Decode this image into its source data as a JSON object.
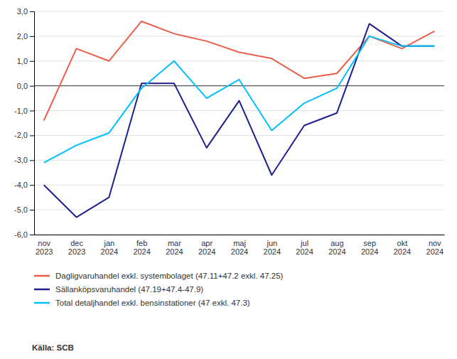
{
  "chart_data": {
    "type": "line",
    "categories": [
      "nov\n2023",
      "dec\n2023",
      "jan\n2024",
      "feb\n2024",
      "mar\n2024",
      "apr\n2024",
      "maj\n2024",
      "jun\n2024",
      "jul\n2024",
      "aug\n2024",
      "sep\n2024",
      "okt\n2024",
      "nov\n2024"
    ],
    "series": [
      {
        "name": "Dagligvaruhandel exkl. systembolaget (47.11+47.2 exkl. 47.25)",
        "color": "#E8604C",
        "values": [
          -1.4,
          1.5,
          1.0,
          2.6,
          2.1,
          1.8,
          1.35,
          1.1,
          0.3,
          0.5,
          2.0,
          1.5,
          2.2
        ]
      },
      {
        "name": "Sällanköpsvaruhandel (47.19+47.4-47.9)",
        "color": "#1F1F8F",
        "values": [
          -4.0,
          -5.3,
          -4.5,
          0.1,
          0.1,
          -2.5,
          -0.6,
          -3.6,
          -1.6,
          -1.1,
          2.5,
          1.6,
          1.6
        ]
      },
      {
        "name": "Total detaljhandel exkl. bensinstationer (47 exkl. 47.3)",
        "color": "#00BFFF",
        "values": [
          -3.1,
          -2.4,
          -1.9,
          -0.1,
          1.0,
          -0.5,
          0.25,
          -1.8,
          -0.7,
          -0.1,
          2.0,
          1.6,
          1.6
        ]
      }
    ],
    "ylim": [
      -6.0,
      3.0
    ],
    "yticks": [
      {
        "value": -6.0,
        "label": "-6,0"
      },
      {
        "value": -5.0,
        "label": "-5,0"
      },
      {
        "value": -4.0,
        "label": "-4,0"
      },
      {
        "value": -3.0,
        "label": "-3,0"
      },
      {
        "value": -2.0,
        "label": "-2,0"
      },
      {
        "value": -1.0,
        "label": "-1,0"
      },
      {
        "value": 0.0,
        "label": "0,0"
      },
      {
        "value": 1.0,
        "label": "1,0"
      },
      {
        "value": 2.0,
        "label": "2,0"
      },
      {
        "value": 3.0,
        "label": "3,0"
      }
    ],
    "grid": true,
    "legend": "bottom",
    "annotations": [
      "Källa: SCB"
    ]
  }
}
